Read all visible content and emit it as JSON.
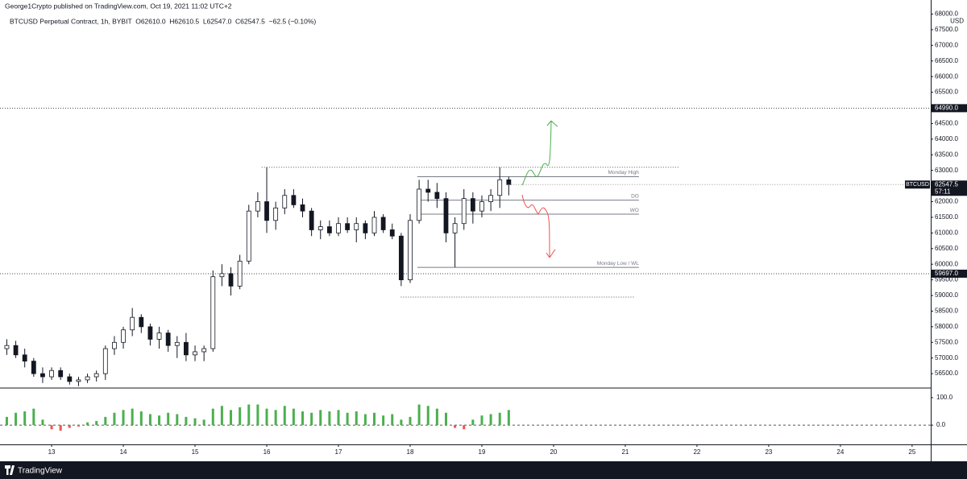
{
  "chart_data": [
    {
      "type": "candlestick",
      "title": "George1Crypto published on TradingView.com, Oct 19, 2021 11:02 UTC+2",
      "subtitle": "BTCUSD Perpetual Contract, 1h, BYBIT  O62610.0  H62610.5  L62547.0  C62547.5  −62.5 (−0.10%)",
      "y_unit": "USD",
      "up_color": "#ffffff",
      "down_color": "#131722",
      "x": [
        12.375,
        12.5,
        12.625,
        12.75,
        12.875,
        13,
        13.125,
        13.25,
        13.375,
        13.5,
        13.625,
        13.75,
        13.875,
        14,
        14.125,
        14.25,
        14.375,
        14.5,
        14.625,
        14.75,
        14.875,
        15,
        15.125,
        15.25,
        15.375,
        15.5,
        15.625,
        15.75,
        15.875,
        16,
        16.125,
        16.25,
        16.375,
        16.5,
        16.625,
        16.75,
        16.875,
        17,
        17.125,
        17.25,
        17.375,
        17.5,
        17.625,
        17.75,
        17.875,
        18,
        18.125,
        18.25,
        18.375,
        18.5,
        18.625,
        18.75,
        18.875,
        19,
        19.125,
        19.25,
        19.375
      ],
      "open": [
        57300,
        57400,
        57100,
        56900,
        56500,
        56400,
        56600,
        56400,
        56250,
        56300,
        56400,
        56500,
        57300,
        57500,
        57900,
        58300,
        58000,
        57600,
        57800,
        57400,
        57500,
        57100,
        57200,
        57300,
        59600,
        59700,
        59300,
        60100,
        61700,
        62000,
        61400,
        61800,
        62200,
        61900,
        61700,
        61100,
        61200,
        61000,
        61300,
        61100,
        61300,
        61000,
        61500,
        61100,
        60900,
        59500,
        61400,
        62400,
        62300,
        62100,
        61000,
        61300,
        62100,
        61700,
        62000,
        62200,
        62700
      ],
      "high": [
        57600,
        57550,
        57300,
        57000,
        56700,
        56700,
        56700,
        56500,
        56400,
        56500,
        56600,
        57400,
        57700,
        58000,
        58600,
        58400,
        58100,
        58000,
        57900,
        57700,
        57800,
        57400,
        57400,
        59800,
        60000,
        59900,
        60300,
        61900,
        62300,
        63100,
        62000,
        62400,
        62400,
        62100,
        61800,
        61400,
        61400,
        61500,
        61500,
        61500,
        61400,
        61700,
        61600,
        61300,
        61000,
        61600,
        62700,
        62700,
        62600,
        62300,
        61500,
        62400,
        62300,
        62200,
        62400,
        63100,
        62800
      ],
      "low": [
        57100,
        57000,
        56700,
        56400,
        56200,
        56300,
        56300,
        56150,
        56100,
        56200,
        56250,
        56300,
        57100,
        57300,
        57700,
        57800,
        57400,
        57300,
        57200,
        57000,
        56900,
        56900,
        56900,
        57200,
        59300,
        59000,
        59200,
        60000,
        61500,
        61000,
        61100,
        61600,
        61800,
        61500,
        60900,
        60800,
        60900,
        60900,
        61000,
        60700,
        60800,
        60900,
        61000,
        60800,
        59300,
        59400,
        61300,
        62000,
        61800,
        60700,
        59900,
        61100,
        61300,
        61500,
        61700,
        61800,
        62200
      ],
      "close": [
        57400,
        57100,
        56900,
        56500,
        56400,
        56600,
        56400,
        56250,
        56300,
        56400,
        56500,
        57300,
        57500,
        57900,
        58300,
        58000,
        57600,
        57800,
        57400,
        57500,
        57100,
        57200,
        57300,
        59600,
        59700,
        59300,
        60100,
        61700,
        62000,
        61400,
        61800,
        62200,
        61900,
        61700,
        61100,
        61200,
        61000,
        61300,
        61100,
        61300,
        61000,
        61500,
        61100,
        60900,
        59500,
        61400,
        62400,
        62300,
        62100,
        61000,
        61300,
        62100,
        61700,
        62000,
        62200,
        62700,
        62547.5
      ],
      "xlim": [
        12.28,
        25.26
      ],
      "xticks": [
        13,
        14,
        15,
        16,
        17,
        18,
        19,
        20,
        21,
        22,
        23,
        24,
        25
      ],
      "ylim": [
        56040,
        68450
      ],
      "yticks": [
        {
          "value": 56500,
          "label": "56500.0"
        },
        {
          "value": 57000,
          "label": "57000.0"
        },
        {
          "value": 57500,
          "label": "57500.0"
        },
        {
          "value": 58000,
          "label": "58000.0"
        },
        {
          "value": 58500,
          "label": "58500.0"
        },
        {
          "value": 59000,
          "label": "59000.0"
        },
        {
          "value": 59500,
          "label": "59500.0"
        },
        {
          "value": 60000,
          "label": "60000.0"
        },
        {
          "value": 60500,
          "label": "60500.0"
        },
        {
          "value": 61000,
          "label": "61000.0"
        },
        {
          "value": 61500,
          "label": "61500.0"
        },
        {
          "value": 62000,
          "label": "62000.0"
        },
        {
          "value": 62500,
          "label": "62500.0"
        },
        {
          "value": 63000,
          "label": "63000.0"
        },
        {
          "value": 63500,
          "label": "63500.0"
        },
        {
          "value": 64000,
          "label": "64000.0"
        },
        {
          "value": 64500,
          "label": "64500.0"
        },
        {
          "value": 65000,
          "label": "65000.0"
        },
        {
          "value": 65500,
          "label": "65500.0"
        },
        {
          "value": 66000,
          "label": "66000.0"
        },
        {
          "value": 66500,
          "label": "66500.0"
        },
        {
          "value": 67000,
          "label": "67000.0"
        },
        {
          "value": 67500,
          "label": "67500.0"
        },
        {
          "value": 68000,
          "label": "68000.0"
        }
      ],
      "price_tags": [
        {
          "value": 64990,
          "label": "64990.0"
        },
        {
          "value": 59697,
          "label": "59697.0"
        }
      ],
      "last": {
        "symbol": "BTCUSD",
        "value": 62547.5,
        "label": "62547.5",
        "countdown": "57:11"
      },
      "levels": [
        {
          "label": "Monday High",
          "value": 62800,
          "from": 18.1,
          "to": 21.19
        },
        {
          "label": "DO",
          "value": 62050,
          "from": 18.1,
          "to": 21.19
        },
        {
          "label": "WO",
          "value": 61600,
          "from": 18.1,
          "to": 21.19
        },
        {
          "label": "Monday Low / WL",
          "value": 59900,
          "from": 18.1,
          "to": 21.19
        }
      ],
      "dotted_levels": [
        {
          "value": 63100,
          "from": 15.93,
          "to": 21.75
        },
        {
          "value": 58950,
          "from": 17.87,
          "to": 21.14
        }
      ]
    },
    {
      "type": "bar",
      "up_color": "#4caf50",
      "down_color": "#ef5350",
      "values": [
        30,
        45,
        50,
        60,
        20,
        -15,
        -20,
        -10,
        -5,
        10,
        15,
        30,
        45,
        55,
        60,
        50,
        40,
        35,
        45,
        40,
        30,
        25,
        20,
        60,
        70,
        55,
        65,
        75,
        75,
        60,
        55,
        70,
        60,
        50,
        45,
        55,
        50,
        55,
        45,
        50,
        40,
        45,
        35,
        40,
        20,
        30,
        75,
        70,
        60,
        45,
        -10,
        -15,
        20,
        35,
        40,
        45,
        55
      ],
      "ylim": [
        -70,
        135
      ],
      "yticks": [
        {
          "value": 100,
          "label": "100.0"
        },
        {
          "value": 0,
          "label": "0.0"
        }
      ]
    }
  ],
  "footer": {
    "brand": "TradingView"
  }
}
